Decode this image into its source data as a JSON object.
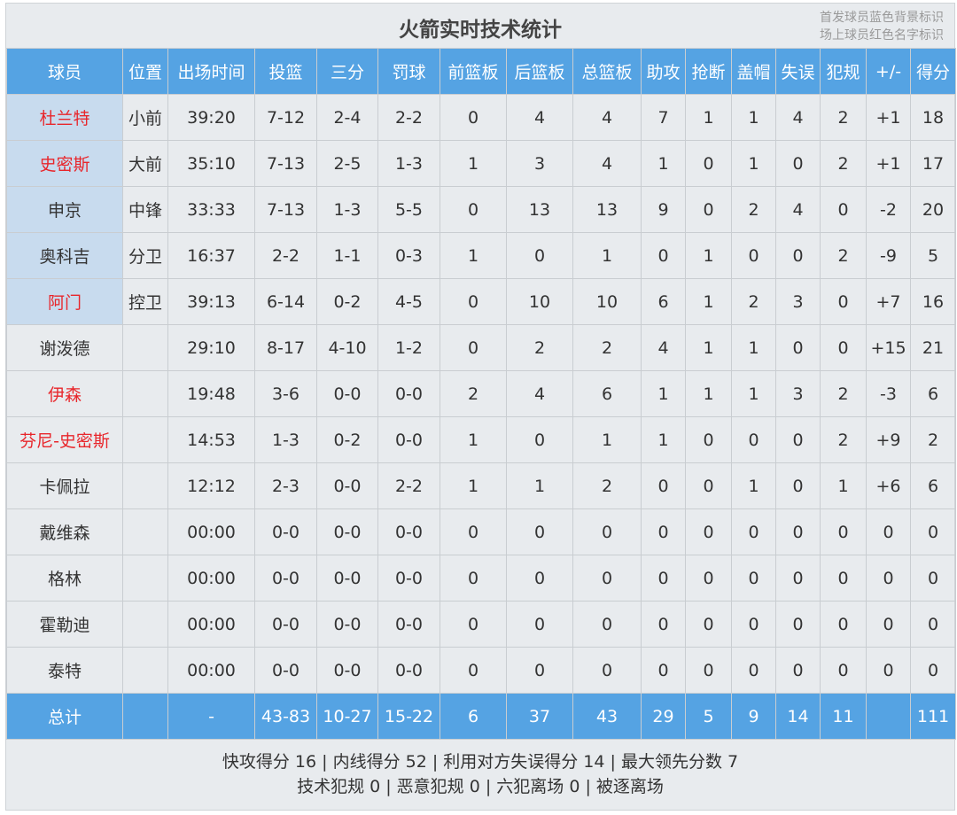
{
  "title": "火箭实时技术统计",
  "legend": [
    "首发球员蓝色背景标识",
    "场上球员红色名字标识"
  ],
  "colors": {
    "header_bg": "#55a3e3",
    "starter_bg": "#c8dbee",
    "on_court_name": "#e8262b"
  },
  "columns": [
    "球员",
    "位置",
    "出场时间",
    "投篮",
    "三分",
    "罚球",
    "前篮板",
    "后篮板",
    "总篮板",
    "助攻",
    "抢断",
    "盖帽",
    "失误",
    "犯规",
    "+/-",
    "得分"
  ],
  "rows": [
    {
      "starter": true,
      "on_court": true,
      "cells": [
        "杜兰特",
        "小前",
        "39:20",
        "7-12",
        "2-4",
        "2-2",
        "0",
        "4",
        "4",
        "7",
        "1",
        "1",
        "4",
        "2",
        "+1",
        "18"
      ]
    },
    {
      "starter": true,
      "on_court": true,
      "cells": [
        "史密斯",
        "大前",
        "35:10",
        "7-13",
        "2-5",
        "1-3",
        "1",
        "3",
        "4",
        "1",
        "0",
        "1",
        "0",
        "2",
        "+1",
        "17"
      ]
    },
    {
      "starter": true,
      "on_court": false,
      "cells": [
        "申京",
        "中锋",
        "33:33",
        "7-13",
        "1-3",
        "5-5",
        "0",
        "13",
        "13",
        "9",
        "0",
        "2",
        "4",
        "0",
        "-2",
        "20"
      ]
    },
    {
      "starter": true,
      "on_court": false,
      "cells": [
        "奥科吉",
        "分卫",
        "16:37",
        "2-2",
        "1-1",
        "0-3",
        "1",
        "0",
        "1",
        "0",
        "1",
        "0",
        "0",
        "2",
        "-9",
        "5"
      ]
    },
    {
      "starter": true,
      "on_court": true,
      "cells": [
        "阿门",
        "控卫",
        "39:13",
        "6-14",
        "0-2",
        "4-5",
        "0",
        "10",
        "10",
        "6",
        "1",
        "2",
        "3",
        "0",
        "+7",
        "16"
      ]
    },
    {
      "starter": false,
      "on_court": false,
      "cells": [
        "谢泼德",
        "",
        "29:10",
        "8-17",
        "4-10",
        "1-2",
        "0",
        "2",
        "2",
        "4",
        "1",
        "1",
        "0",
        "0",
        "+15",
        "21"
      ]
    },
    {
      "starter": false,
      "on_court": true,
      "cells": [
        "伊森",
        "",
        "19:48",
        "3-6",
        "0-0",
        "0-0",
        "2",
        "4",
        "6",
        "1",
        "1",
        "1",
        "3",
        "2",
        "-3",
        "6"
      ]
    },
    {
      "starter": false,
      "on_court": true,
      "cells": [
        "芬尼-史密斯",
        "",
        "14:53",
        "1-3",
        "0-2",
        "0-0",
        "1",
        "0",
        "1",
        "1",
        "0",
        "0",
        "0",
        "2",
        "+9",
        "2"
      ]
    },
    {
      "starter": false,
      "on_court": false,
      "cells": [
        "卡佩拉",
        "",
        "12:12",
        "2-3",
        "0-0",
        "2-2",
        "1",
        "1",
        "2",
        "0",
        "0",
        "1",
        "0",
        "1",
        "+6",
        "6"
      ]
    },
    {
      "starter": false,
      "on_court": false,
      "cells": [
        "戴维森",
        "",
        "00:00",
        "0-0",
        "0-0",
        "0-0",
        "0",
        "0",
        "0",
        "0",
        "0",
        "0",
        "0",
        "0",
        "0",
        "0"
      ]
    },
    {
      "starter": false,
      "on_court": false,
      "cells": [
        "格林",
        "",
        "00:00",
        "0-0",
        "0-0",
        "0-0",
        "0",
        "0",
        "0",
        "0",
        "0",
        "0",
        "0",
        "0",
        "0",
        "0"
      ]
    },
    {
      "starter": false,
      "on_court": false,
      "cells": [
        "霍勒迪",
        "",
        "00:00",
        "0-0",
        "0-0",
        "0-0",
        "0",
        "0",
        "0",
        "0",
        "0",
        "0",
        "0",
        "0",
        "0",
        "0"
      ]
    },
    {
      "starter": false,
      "on_court": false,
      "cells": [
        "泰特",
        "",
        "00:00",
        "0-0",
        "0-0",
        "0-0",
        "0",
        "0",
        "0",
        "0",
        "0",
        "0",
        "0",
        "0",
        "0",
        "0"
      ]
    }
  ],
  "total": [
    "总计",
    "",
    "-",
    "43-83",
    "10-27",
    "15-22",
    "6",
    "37",
    "43",
    "29",
    "5",
    "9",
    "14",
    "11",
    "",
    "111"
  ],
  "footer": [
    "快攻得分 16 | 内线得分 52 | 利用对方失误得分 14 | 最大领先分数 7",
    "技术犯规 0 | 恶意犯规 0 | 六犯离场 0 | 被逐离场"
  ]
}
